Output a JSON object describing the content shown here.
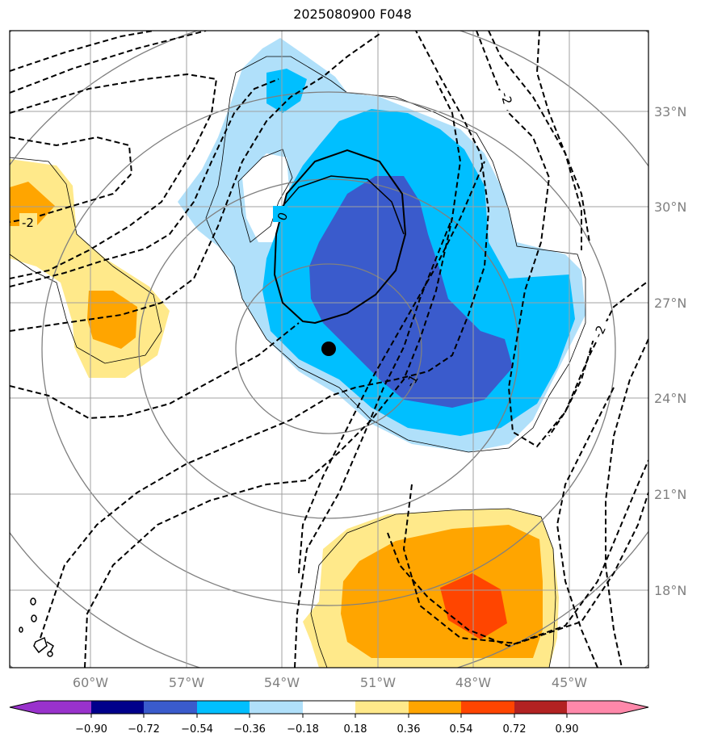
{
  "title": "2025080900 F048",
  "map": {
    "lat_labels": [
      "33°N",
      "30°N",
      "27°N",
      "24°N",
      "21°N",
      "18°N"
    ],
    "lon_labels": [
      "60°W",
      "57°W",
      "54°W",
      "51°W",
      "48°W",
      "45°W"
    ],
    "contour_labels": [
      "-2",
      "0",
      "-1",
      "-2",
      "-2"
    ],
    "colors": {
      "very_dark_blue": "#00008b",
      "dark_blue": "#3a5bcc",
      "blue": "#00bfff",
      "light_blue": "#b0e0fa",
      "light_yellow": "#ffe98a",
      "orange": "#ffa500",
      "red_orange": "#ff4500",
      "dark_red": "#b22222",
      "pink": "#ff88aa",
      "purple": "#9932cc",
      "grid": "#a0a0a0",
      "range_ring": "#808080"
    }
  },
  "colorbar": {
    "levels": [
      "−0.90",
      "−0.72",
      "−0.54",
      "−0.36",
      "−0.18",
      "0.18",
      "0.36",
      "0.54",
      "0.72",
      "0.90"
    ],
    "colors": [
      "#9932cc",
      "#00008b",
      "#3a5bcc",
      "#00bfff",
      "#b0e0fa",
      "#ffffff",
      "#ffe98a",
      "#ffa500",
      "#ff4500",
      "#b22222",
      "#ff88aa"
    ]
  }
}
